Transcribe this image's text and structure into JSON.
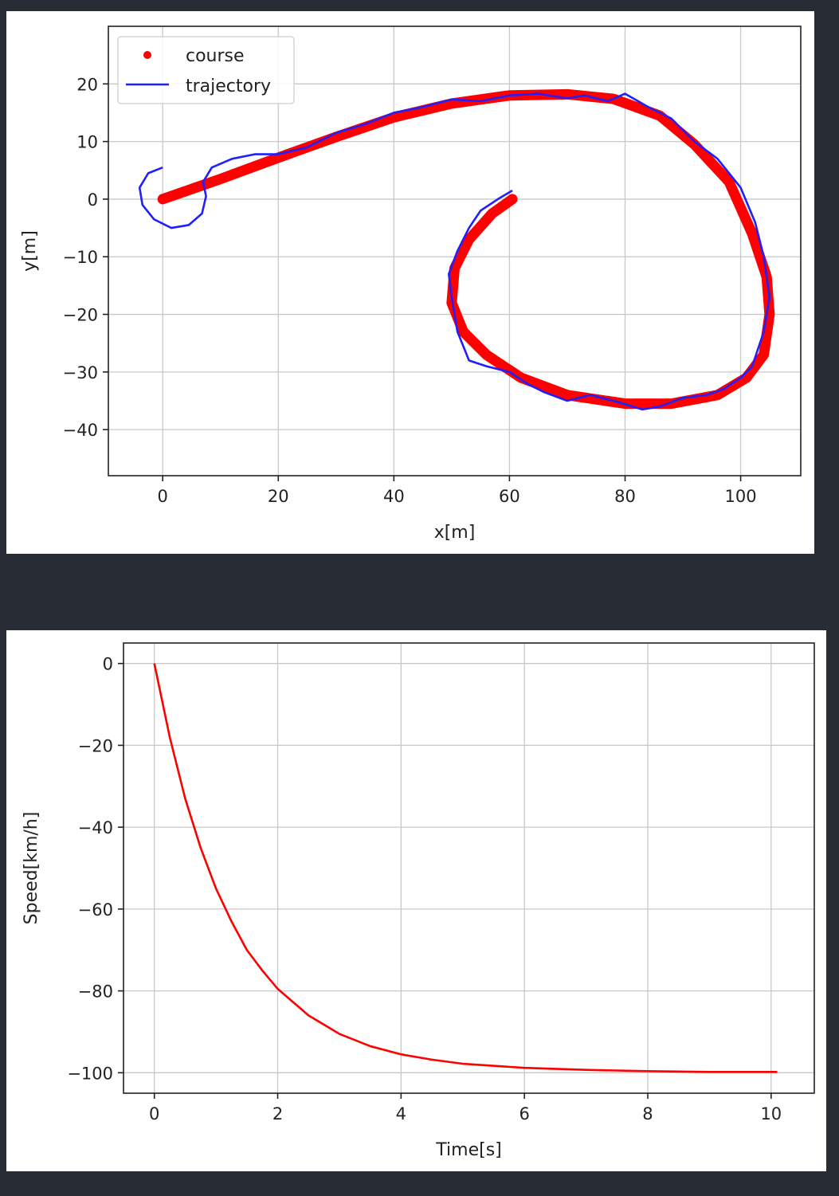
{
  "chart_data": [
    {
      "type": "line",
      "xlabel": "x[m]",
      "ylabel": "y[m]",
      "xlim": [
        -9.4,
        110.4
      ],
      "ylim": [
        -48,
        30
      ],
      "xticks": [
        0,
        20,
        40,
        60,
        80,
        100
      ],
      "yticks": [
        20,
        10,
        0,
        -10,
        -20,
        -30,
        -40
      ],
      "xtick_labels": [
        "0",
        "20",
        "40",
        "60",
        "80",
        "100"
      ],
      "ytick_labels": [
        "20",
        "10",
        "0",
        "−10",
        "−20",
        "−30",
        "−40"
      ],
      "grid": true,
      "legend": {
        "placement": "upper-left",
        "entries": [
          "course",
          "trajectory"
        ]
      },
      "series": [
        {
          "name": "course",
          "style": "dots",
          "color": "#ff0000",
          "x": [
            0,
            10,
            20,
            30,
            40,
            50,
            60,
            70,
            78,
            86,
            92,
            98,
            102,
            104.5,
            105,
            104,
            101,
            96,
            88,
            80,
            70,
            62,
            56,
            52,
            50,
            50.5,
            53,
            57,
            60.5
          ],
          "y": [
            0,
            3.5,
            7.2,
            10.8,
            14.2,
            16.6,
            18,
            18.2,
            17.4,
            14.5,
            9.5,
            3,
            -6,
            -13.5,
            -20,
            -27,
            -31,
            -34,
            -35.5,
            -35.5,
            -34,
            -31,
            -27,
            -23,
            -18,
            -12,
            -7,
            -2.5,
            0
          ]
        },
        {
          "name": "trajectory",
          "style": "line",
          "color": "#1f1fff",
          "x": [
            0,
            -2.5,
            -4,
            -3.5,
            -1.5,
            1.5,
            4.5,
            6.8,
            7.5,
            7,
            8.5,
            12,
            16,
            20,
            25,
            30,
            35,
            40,
            45,
            50,
            55,
            60,
            65,
            70,
            73,
            77,
            80,
            84,
            88,
            92,
            96,
            100,
            102.5,
            104,
            105,
            104,
            102,
            100,
            97,
            94,
            90,
            86,
            83,
            78,
            74,
            70,
            66,
            63,
            60,
            56,
            53,
            51,
            50,
            49.5,
            51,
            53,
            55,
            58,
            60.5
          ],
          "y": [
            5.5,
            4.5,
            2,
            -1,
            -3.5,
            -5,
            -4.5,
            -2.5,
            0.5,
            3,
            5.5,
            7,
            7.8,
            7.8,
            9,
            11.5,
            13,
            15,
            16,
            17.3,
            17,
            18,
            18.3,
            17.5,
            18,
            17,
            18.3,
            16,
            14,
            10,
            7,
            2,
            -4,
            -10,
            -17,
            -23,
            -29,
            -31,
            -33,
            -34,
            -34.5,
            -36,
            -36.5,
            -35,
            -34,
            -35,
            -33.5,
            -32,
            -30,
            -29,
            -28,
            -23,
            -17,
            -13,
            -9,
            -5,
            -2,
            0,
            1.5
          ]
        }
      ]
    },
    {
      "type": "line",
      "xlabel": "Time[s]",
      "ylabel": "Speed[km/h]",
      "xlim": [
        -0.5,
        10.7
      ],
      "ylim": [
        -105,
        5
      ],
      "xticks": [
        0,
        2,
        4,
        6,
        8,
        10
      ],
      "yticks": [
        0,
        -20,
        -40,
        -60,
        -80,
        -100
      ],
      "xtick_labels": [
        "0",
        "2",
        "4",
        "6",
        "8",
        "10"
      ],
      "ytick_labels": [
        "0",
        "−20",
        "−40",
        "−60",
        "−80",
        "−100"
      ],
      "grid": true,
      "series": [
        {
          "style": "line",
          "color": "#ff0000",
          "function": "exponential approach to -100",
          "x": [
            0,
            0.25,
            0.5,
            0.75,
            1,
            1.25,
            1.5,
            1.75,
            2,
            2.5,
            3,
            3.5,
            4,
            4.5,
            5,
            6,
            7,
            8,
            9,
            10.1
          ],
          "y": [
            0,
            -18,
            -33,
            -45,
            -55,
            -63,
            -70,
            -75,
            -79.5,
            -86,
            -90.5,
            -93.5,
            -95.5,
            -96.8,
            -97.8,
            -98.8,
            -99.3,
            -99.6,
            -99.8,
            -99.8
          ]
        }
      ]
    }
  ]
}
